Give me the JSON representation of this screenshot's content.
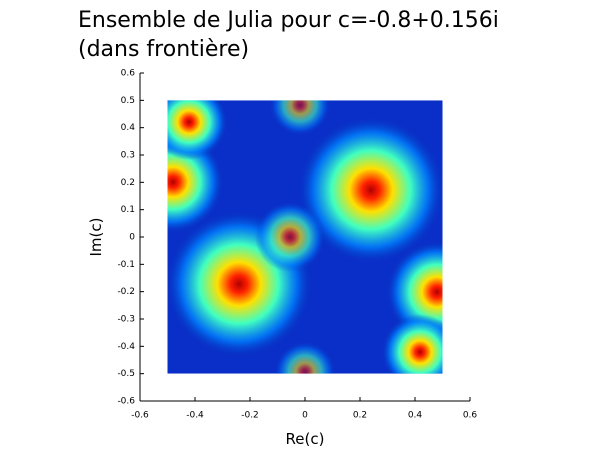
{
  "chart_data": {
    "type": "image",
    "title": [
      "Ensemble de Julia pour c=-0.8+0.156i",
      "(dans frontière)"
    ],
    "x_label": "Re(c)",
    "y_label": "Im(c)",
    "xlim": [
      -0.6,
      0.6
    ],
    "ylim": [
      -0.6,
      0.6
    ],
    "xticks": [
      -0.6,
      -0.4,
      -0.2,
      0,
      0.2,
      0.4,
      0.6
    ],
    "yticks": [
      -0.6,
      -0.5,
      -0.4,
      -0.3,
      -0.2,
      -0.1,
      0,
      0.1,
      0.2,
      0.3,
      0.4,
      0.5,
      0.6
    ],
    "extent": [
      -0.5,
      0.5,
      -0.5,
      0.5
    ]
  }
}
